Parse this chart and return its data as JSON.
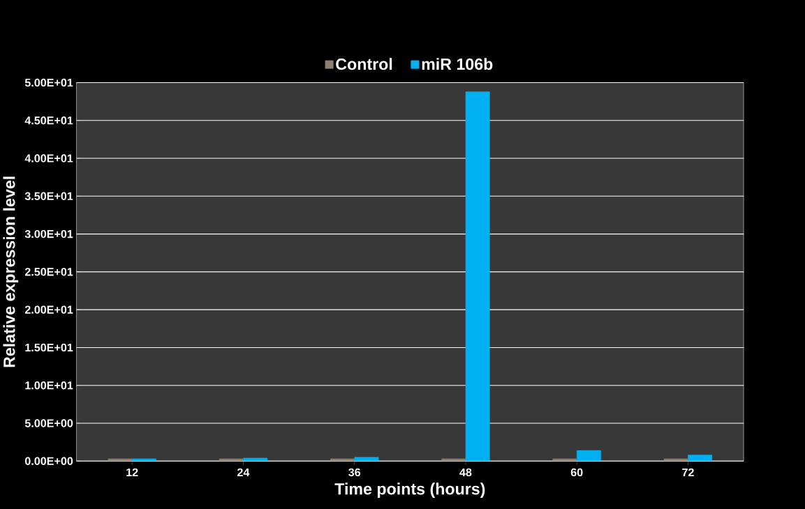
{
  "chart_data": {
    "type": "bar",
    "xlabel": "Time points (hours)",
    "ylabel": "Relative expression level",
    "categories": [
      "12",
      "24",
      "36",
      "48",
      "60",
      "72"
    ],
    "series": [
      {
        "name": "Control",
        "color": "#8c8070",
        "values": [
          0.3,
          0.3,
          0.3,
          0.3,
          0.3,
          0.3
        ]
      },
      {
        "name": "miR 106b",
        "color": "#00b0f0",
        "values": [
          0.3,
          0.4,
          0.5,
          48.8,
          1.4,
          0.8
        ]
      }
    ],
    "ylim": [
      0,
      50
    ],
    "yticks": [
      {
        "value": 0,
        "label": "0.00E+00"
      },
      {
        "value": 5,
        "label": "5.00E+00"
      },
      {
        "value": 10,
        "label": "1.00E+01"
      },
      {
        "value": 15,
        "label": "1.50E+01"
      },
      {
        "value": 20,
        "label": "2.00E+01"
      },
      {
        "value": 25,
        "label": "2.50E+01"
      },
      {
        "value": 30,
        "label": "3.00E+01"
      },
      {
        "value": 35,
        "label": "3.50E+01"
      },
      {
        "value": 40,
        "label": "4.00E+01"
      },
      {
        "value": 45,
        "label": "4.50E+01"
      },
      {
        "value": 50,
        "label": "5.00E+01"
      }
    ],
    "grid": "y",
    "legend": "top"
  }
}
